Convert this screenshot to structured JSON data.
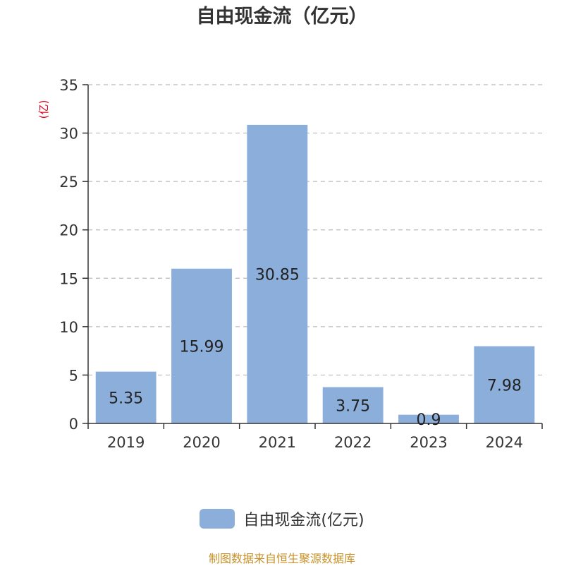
{
  "chart_data": {
    "type": "bar",
    "title": "自由现金流（亿元）",
    "ylabel": "(亿)",
    "xlabel": "",
    "categories": [
      "2019",
      "2020",
      "2021",
      "2022",
      "2023",
      "2024"
    ],
    "series": [
      {
        "name": "自由现金流(亿元)",
        "values": [
          5.35,
          15.99,
          30.85,
          3.75,
          0.9,
          7.98
        ],
        "labels": [
          "5.35",
          "15.99",
          "30.85",
          "3.75",
          "0.9",
          "7.98"
        ]
      }
    ],
    "ylim": [
      0,
      35
    ],
    "yticks": [
      0,
      5,
      10,
      15,
      20,
      25,
      30,
      35
    ],
    "grid": true,
    "legend_position": "bottom-center",
    "colors": {
      "bar": "#8caedb",
      "ylabel": "#e0001b",
      "source": "#c8922a"
    }
  },
  "source_note": "制图数据来自恒生聚源数据库"
}
